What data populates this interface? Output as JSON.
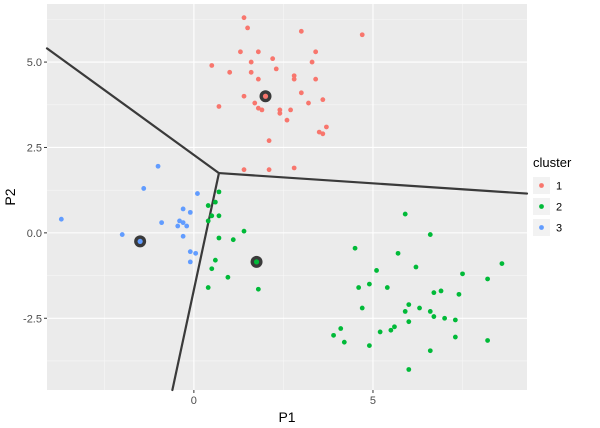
{
  "chart_data": {
    "type": "scatter",
    "xlabel": "P1",
    "ylabel": "P2",
    "xlim": [
      -4.1,
      9.3
    ],
    "ylim": [
      -4.6,
      6.7
    ],
    "x_ticks": [
      0,
      5
    ],
    "y_ticks": [
      -2.5,
      0.0,
      2.5,
      5.0
    ],
    "x_tick_labels": [
      "0",
      "5"
    ],
    "y_tick_labels": [
      "-2.5",
      "0.0",
      "2.5",
      "5.0"
    ],
    "grid": true,
    "legend": {
      "title": "cluster",
      "position": "right",
      "entries": [
        {
          "label": "1",
          "color": "#F8766D"
        },
        {
          "label": "2",
          "color": "#00BA38"
        },
        {
          "label": "3",
          "color": "#619CFF"
        }
      ]
    },
    "series": [
      {
        "name": "1",
        "color": "#F8766D",
        "points": [
          [
            1.4,
            6.3
          ],
          [
            1.5,
            6.0
          ],
          [
            3.0,
            5.9
          ],
          [
            4.7,
            5.8
          ],
          [
            0.5,
            4.9
          ],
          [
            1.3,
            5.3
          ],
          [
            1.8,
            5.3
          ],
          [
            1.6,
            5.0
          ],
          [
            2.2,
            5.1
          ],
          [
            3.4,
            5.3
          ],
          [
            3.3,
            5.0
          ],
          [
            1.0,
            4.7
          ],
          [
            1.6,
            4.7
          ],
          [
            2.3,
            4.8
          ],
          [
            1.8,
            4.5
          ],
          [
            2.8,
            4.6
          ],
          [
            2.8,
            4.5
          ],
          [
            3.4,
            4.5
          ],
          [
            1.4,
            4.0
          ],
          [
            2.0,
            4.0
          ],
          [
            3.0,
            4.1
          ],
          [
            3.6,
            3.9
          ],
          [
            3.2,
            3.8
          ],
          [
            0.7,
            3.7
          ],
          [
            1.7,
            3.8
          ],
          [
            1.8,
            3.65
          ],
          [
            2.4,
            3.6
          ],
          [
            1.9,
            3.6
          ],
          [
            2.7,
            3.6
          ],
          [
            2.4,
            3.5
          ],
          [
            2.6,
            3.3
          ],
          [
            3.7,
            3.1
          ],
          [
            3.5,
            2.95
          ],
          [
            3.6,
            2.9
          ],
          [
            2.1,
            2.7
          ],
          [
            1.4,
            1.85
          ],
          [
            2.1,
            1.85
          ],
          [
            2.8,
            1.9
          ]
        ]
      },
      {
        "name": "2",
        "color": "#00BA38",
        "points": [
          [
            0.7,
            1.2
          ],
          [
            0.6,
            0.9
          ],
          [
            0.4,
            0.8
          ],
          [
            0.5,
            0.5
          ],
          [
            0.7,
            0.5
          ],
          [
            0.4,
            0.35
          ],
          [
            0.7,
            -0.15
          ],
          [
            1.1,
            -0.2
          ],
          [
            1.4,
            0.05
          ],
          [
            0.6,
            -0.8
          ],
          [
            0.5,
            -1.05
          ],
          [
            0.95,
            -1.3
          ],
          [
            0.4,
            -1.6
          ],
          [
            1.8,
            -1.65
          ],
          [
            5.9,
            0.55
          ],
          [
            6.6,
            -0.05
          ],
          [
            4.5,
            -0.45
          ],
          [
            5.1,
            -1.1
          ],
          [
            5.7,
            -0.6
          ],
          [
            6.2,
            -1.0
          ],
          [
            4.9,
            -1.5
          ],
          [
            7.5,
            -1.2
          ],
          [
            8.6,
            -0.9
          ],
          [
            4.6,
            -1.6
          ],
          [
            5.4,
            -1.6
          ],
          [
            6.7,
            -1.75
          ],
          [
            6.9,
            -1.7
          ],
          [
            8.2,
            -1.35
          ],
          [
            4.7,
            -2.2
          ],
          [
            6.0,
            -2.1
          ],
          [
            6.3,
            -2.2
          ],
          [
            5.9,
            -2.3
          ],
          [
            7.4,
            -1.8
          ],
          [
            6.6,
            -2.3
          ],
          [
            6.0,
            -2.6
          ],
          [
            4.1,
            -2.8
          ],
          [
            5.2,
            -2.9
          ],
          [
            5.6,
            -2.75
          ],
          [
            6.7,
            -2.45
          ],
          [
            7.0,
            -2.5
          ],
          [
            7.3,
            -2.55
          ],
          [
            5.5,
            -2.85
          ],
          [
            4.2,
            -3.2
          ],
          [
            3.9,
            -3.0
          ],
          [
            4.9,
            -3.3
          ],
          [
            7.3,
            -3.05
          ],
          [
            8.2,
            -3.15
          ],
          [
            6.6,
            -3.45
          ],
          [
            6.0,
            -4.0
          ]
        ]
      },
      {
        "name": "3",
        "color": "#619CFF",
        "points": [
          [
            -1.0,
            1.95
          ],
          [
            -1.4,
            1.3
          ],
          [
            0.1,
            1.15
          ],
          [
            -3.7,
            0.4
          ],
          [
            -0.3,
            0.7
          ],
          [
            -0.1,
            0.6
          ],
          [
            -0.9,
            0.3
          ],
          [
            -0.4,
            0.35
          ],
          [
            -0.3,
            0.3
          ],
          [
            -0.2,
            0.2
          ],
          [
            -0.45,
            0.2
          ],
          [
            -2.0,
            -0.05
          ],
          [
            -0.3,
            -0.1
          ],
          [
            -0.1,
            -0.55
          ],
          [
            0.05,
            -0.6
          ],
          [
            -0.1,
            -0.85
          ]
        ]
      }
    ],
    "centers": [
      {
        "cluster": "1",
        "x": 2.0,
        "y": 4.0,
        "color": "#F8766D"
      },
      {
        "cluster": "2",
        "x": 1.75,
        "y": -0.85,
        "color": "#00BA38"
      },
      {
        "cluster": "3",
        "x": -1.5,
        "y": -0.25,
        "color": "#619CFF"
      }
    ],
    "boundaries": [
      {
        "from": [
          -4.1,
          5.4
        ],
        "to": [
          0.7,
          1.75
        ]
      },
      {
        "from": [
          0.7,
          1.75
        ],
        "to": [
          9.3,
          1.15
        ]
      },
      {
        "from": [
          0.7,
          1.75
        ],
        "to": [
          -0.6,
          -4.6
        ]
      }
    ]
  }
}
